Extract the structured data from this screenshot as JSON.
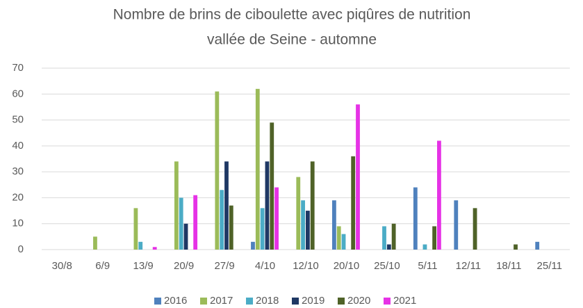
{
  "chart_data": {
    "type": "bar",
    "title": [
      "Nombre de brins de ciboulette avec piqûres de nutrition",
      "vallée de Seine - automne"
    ],
    "categories": [
      "30/8",
      "6/9",
      "13/9",
      "20/9",
      "27/9",
      "4/10",
      "12/10",
      "20/10",
      "25/10",
      "5/11",
      "12/11",
      "18/11",
      "25/11"
    ],
    "series": [
      {
        "name": "2016",
        "color": "#4f81bd",
        "values": [
          0,
          0,
          0,
          0,
          0,
          3,
          0,
          19,
          0,
          24,
          19,
          0,
          3
        ]
      },
      {
        "name": "2017",
        "color": "#9bbb59",
        "values": [
          0,
          5,
          16,
          34,
          61,
          62,
          28,
          9,
          0,
          0,
          0,
          0,
          0
        ]
      },
      {
        "name": "2018",
        "color": "#4bacc6",
        "values": [
          0,
          0,
          3,
          20,
          23,
          16,
          19,
          6,
          9,
          2,
          0,
          0,
          0
        ]
      },
      {
        "name": "2019",
        "color": "#1f3864",
        "values": [
          0,
          0,
          0,
          10,
          34,
          34,
          15,
          0,
          2,
          0,
          0,
          0,
          0
        ]
      },
      {
        "name": "2020",
        "color": "#4f6228",
        "values": [
          0,
          0,
          0,
          0,
          17,
          49,
          34,
          36,
          10,
          9,
          16,
          2,
          0
        ]
      },
      {
        "name": "2021",
        "color": "#e632e6",
        "values": [
          0,
          0,
          1,
          21,
          0,
          24,
          0,
          56,
          0,
          42,
          0,
          0,
          0
        ]
      }
    ],
    "ylim": [
      0,
      70
    ],
    "yticks": [
      0,
      10,
      20,
      30,
      40,
      50,
      60,
      70
    ],
    "grid": true,
    "legend": "bottom"
  }
}
